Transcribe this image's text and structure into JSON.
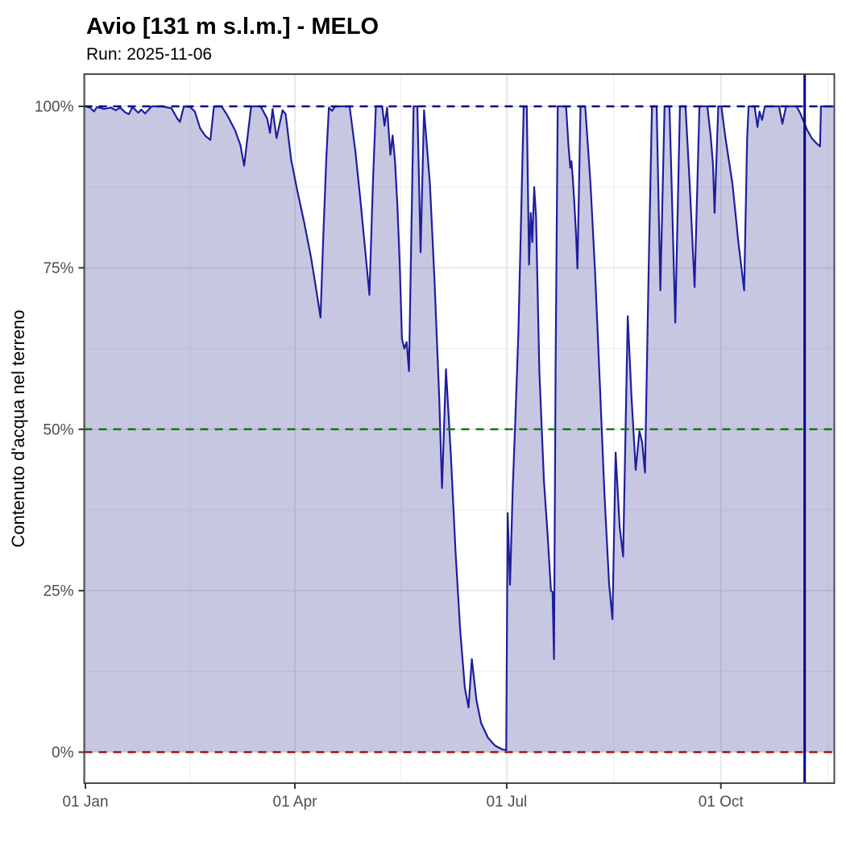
{
  "title": "Avio [131 m s.l.m.] - MELO",
  "subtitle": "Run: 2025-11-06",
  "colors": {
    "series_line": "#1e1e9e",
    "series_fill": "rgba(70,70,160,0.30)",
    "ref_100": "#00008B",
    "ref_50": "#0e7a0e",
    "ref_0": "#a01515",
    "run_line": "#00008B",
    "grid_major": "#e2e2e2",
    "grid_minor": "#efefef",
    "panel_border": "#4a4a4a",
    "tick_mark": "#333333",
    "tick_text": "#4d4d4d"
  },
  "chart_data": {
    "type": "area",
    "title": "Avio [131 m s.l.m.] - MELO",
    "subtitle": "Run: 2025-11-06",
    "xlabel": "",
    "ylabel": "Contenuto d'acqua nel terreno",
    "x_unit": "day of year 2025 (0 = 01 Jan)",
    "y_unit": "percent",
    "ylim": [
      0,
      100
    ],
    "grid": {
      "on": true,
      "y_major": [
        0,
        25,
        50,
        75,
        100
      ],
      "y_minor": [
        12.5,
        37.5,
        62.5,
        87.5
      ],
      "x_major_days": [
        0,
        90,
        181,
        273
      ],
      "x_minor_days": [
        45,
        135.5,
        227,
        319
      ]
    },
    "x_ticks": [
      {
        "day": 0,
        "label": "01 Jan"
      },
      {
        "day": 90,
        "label": "01 Apr"
      },
      {
        "day": 181,
        "label": "01 Jul"
      },
      {
        "day": 273,
        "label": "01 Oct"
      }
    ],
    "y_ticks": [
      {
        "value": 0,
        "label": "0%"
      },
      {
        "value": 25,
        "label": "25%"
      },
      {
        "value": 50,
        "label": "50%"
      },
      {
        "value": 75,
        "label": "75%"
      },
      {
        "value": 100,
        "label": "100%"
      }
    ],
    "reference_lines": [
      {
        "name": "saturation-100",
        "value": 100,
        "color": "#00008B",
        "style": "dashed"
      },
      {
        "name": "mid-50",
        "value": 50,
        "color": "#0e7a0e",
        "style": "dashed"
      },
      {
        "name": "wilting-0",
        "value": 0,
        "color": "#a01515",
        "style": "dashed"
      }
    ],
    "run_line": {
      "label": "2025-11-06",
      "day": 309,
      "color": "#00008B",
      "style": "solid"
    },
    "legend": {
      "shown": false
    },
    "series": [
      {
        "name": "Contenuto d'acqua nel terreno",
        "line_color": "#1e1e9e",
        "fill_color": "rgba(70,70,160,0.30)",
        "points": [
          [
            -0.5,
            100
          ],
          [
            0,
            100
          ],
          [
            2,
            99.8
          ],
          [
            3.7,
            99.2
          ],
          [
            5,
            99.9
          ],
          [
            8,
            99.6
          ],
          [
            11,
            99.8
          ],
          [
            13,
            99.4
          ],
          [
            15,
            99.8
          ],
          [
            17,
            99.1
          ],
          [
            18.7,
            98.8
          ],
          [
            20.2,
            99.9
          ],
          [
            22.7,
            99.0
          ],
          [
            24,
            99.5
          ],
          [
            25.6,
            98.9
          ],
          [
            28.5,
            100
          ],
          [
            33,
            100
          ],
          [
            37,
            99.7
          ],
          [
            39.5,
            98.1
          ],
          [
            40.6,
            97.6
          ],
          [
            42.3,
            100
          ],
          [
            45,
            99.9
          ],
          [
            47,
            99.2
          ],
          [
            49.3,
            96.6
          ],
          [
            51.6,
            95.4
          ],
          [
            53.7,
            94.8
          ],
          [
            55.2,
            100
          ],
          [
            58.5,
            100
          ],
          [
            61,
            98.6
          ],
          [
            64.3,
            96.3
          ],
          [
            66.6,
            94.0
          ],
          [
            68.2,
            90.8
          ],
          [
            71.2,
            100
          ],
          [
            75.3,
            100
          ],
          [
            78.1,
            98.1
          ],
          [
            79.3,
            95.9
          ],
          [
            80.4,
            99.6
          ],
          [
            82.1,
            95.1
          ],
          [
            84.7,
            99.4
          ],
          [
            86,
            98.8
          ],
          [
            88.4,
            91.7
          ],
          [
            91,
            87.0
          ],
          [
            94,
            82.0
          ],
          [
            97,
            76.5
          ],
          [
            99,
            72.0
          ],
          [
            101,
            67.3
          ],
          [
            102,
            78.0
          ],
          [
            103.5,
            92.0
          ],
          [
            104.6,
            99.8
          ],
          [
            106,
            99.3
          ],
          [
            107.2,
            100
          ],
          [
            113.5,
            100
          ],
          [
            116,
            93.0
          ],
          [
            118,
            86.0
          ],
          [
            120,
            78.5
          ],
          [
            122,
            70.8
          ],
          [
            123.5,
            88.0
          ],
          [
            124.8,
            100
          ],
          [
            127.5,
            100
          ],
          [
            128.5,
            97.0
          ],
          [
            129.6,
            99.8
          ],
          [
            131,
            92.5
          ],
          [
            132,
            95.5
          ],
          [
            133,
            91.6
          ],
          [
            134,
            85.0
          ],
          [
            135,
            76.0
          ],
          [
            136,
            64.0
          ],
          [
            137,
            62.5
          ],
          [
            138,
            63.5
          ],
          [
            139,
            59.0
          ],
          [
            140,
            80.0
          ],
          [
            141,
            100
          ],
          [
            142.6,
            100
          ],
          [
            144,
            77.4
          ],
          [
            145.5,
            99.4
          ],
          [
            148,
            88.0
          ],
          [
            150,
            73.0
          ],
          [
            152,
            55.0
          ],
          [
            153.2,
            40.9
          ],
          [
            154.9,
            59.3
          ],
          [
            157,
            46.0
          ],
          [
            159,
            31.0
          ],
          [
            161,
            19.0
          ],
          [
            163,
            10.0
          ],
          [
            164.6,
            6.9
          ],
          [
            166,
            14.4
          ],
          [
            168,
            8.0
          ],
          [
            170,
            4.5
          ],
          [
            173,
            2.2
          ],
          [
            176,
            1.0
          ],
          [
            179,
            0.45
          ],
          [
            180.8,
            0.3
          ],
          [
            181.4,
            37.0
          ],
          [
            182.4,
            25.9
          ],
          [
            183.6,
            40.9
          ],
          [
            184.7,
            51.5
          ],
          [
            186,
            65.0
          ],
          [
            188.3,
            100
          ],
          [
            189.6,
            100
          ],
          [
            190.6,
            75.5
          ],
          [
            191.3,
            83.5
          ],
          [
            192,
            79.0
          ],
          [
            192.8,
            87.5
          ],
          [
            193.6,
            83.0
          ],
          [
            195,
            59.0
          ],
          [
            197,
            42.0
          ],
          [
            198.5,
            34.0
          ],
          [
            200,
            25.0
          ],
          [
            200.7,
            24.8
          ],
          [
            201.3,
            14.4
          ],
          [
            202,
            60.0
          ],
          [
            202.9,
            100
          ],
          [
            206.5,
            100
          ],
          [
            207.5,
            94.0
          ],
          [
            208.3,
            90.5
          ],
          [
            208.8,
            91.5
          ],
          [
            209.4,
            88.7
          ],
          [
            210,
            85.3
          ],
          [
            210.8,
            80.0
          ],
          [
            211.4,
            74.9
          ],
          [
            212.7,
            100
          ],
          [
            214.7,
            100
          ],
          [
            217,
            88.0
          ],
          [
            219,
            74.0
          ],
          [
            221,
            57.0
          ],
          [
            223,
            40.0
          ],
          [
            225,
            26.0
          ],
          [
            226.4,
            20.6
          ],
          [
            227.8,
            46.4
          ],
          [
            229.5,
            35.0
          ],
          [
            231,
            30.3
          ],
          [
            233,
            67.5
          ],
          [
            234.6,
            55.0
          ],
          [
            236.4,
            43.7
          ],
          [
            238,
            49.7
          ],
          [
            239.2,
            48.0
          ],
          [
            240.4,
            43.3
          ],
          [
            242,
            75.0
          ],
          [
            243.4,
            100
          ],
          [
            245.4,
            100
          ],
          [
            247,
            71.5
          ],
          [
            248.8,
            100
          ],
          [
            250.9,
            100
          ],
          [
            252,
            86.0
          ],
          [
            253.4,
            66.5
          ],
          [
            255.4,
            100
          ],
          [
            257.8,
            100
          ],
          [
            259.6,
            88.0
          ],
          [
            261.7,
            72.0
          ],
          [
            263.8,
            100
          ],
          [
            267.2,
            100
          ],
          [
            268.6,
            95.5
          ],
          [
            269.6,
            91.0
          ],
          [
            270.3,
            83.5
          ],
          [
            271.9,
            100
          ],
          [
            273.2,
            100
          ],
          [
            275,
            95.0
          ],
          [
            278,
            88.0
          ],
          [
            280.5,
            79.0
          ],
          [
            283,
            71.5
          ],
          [
            284.3,
            95.0
          ],
          [
            284.9,
            100
          ],
          [
            287.5,
            100
          ],
          [
            288.7,
            96.8
          ],
          [
            289.6,
            99.2
          ],
          [
            290.7,
            97.9
          ],
          [
            291.9,
            100
          ],
          [
            298,
            100
          ],
          [
            299.4,
            97.3
          ],
          [
            301,
            100
          ],
          [
            305.5,
            100
          ],
          [
            307,
            99.0
          ],
          [
            308.4,
            97.8
          ],
          [
            310,
            96.4
          ],
          [
            312,
            95.1
          ],
          [
            314,
            94.3
          ],
          [
            315.6,
            93.8
          ],
          [
            316,
            100
          ],
          [
            321.5,
            100
          ]
        ]
      }
    ]
  }
}
